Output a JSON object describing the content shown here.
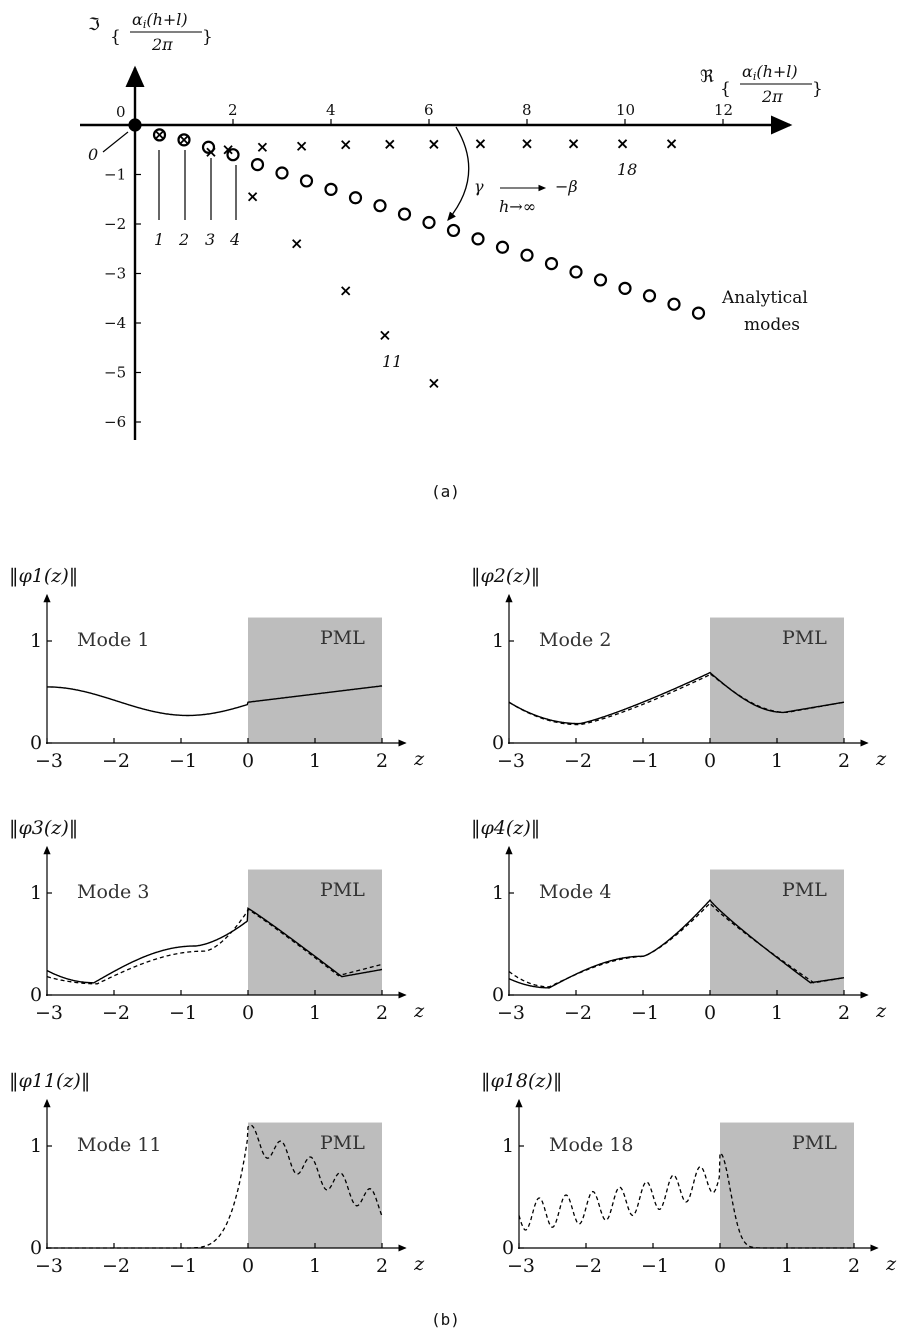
{
  "part_a": {
    "y_axis_label": "ℑ{αi(h+l) / 2π}",
    "x_axis_label": "ℜ{αi(h+l) / 2π}",
    "x_ticks": [
      "2",
      "4",
      "6",
      "8",
      "10",
      "12"
    ],
    "origin_x_label": "0",
    "y_ticks": [
      "−1",
      "−2",
      "−3",
      "−4",
      "−5",
      "−6"
    ],
    "zero_index_label": "0",
    "index_labels": [
      "1",
      "2",
      "3",
      "4",
      "11",
      "18"
    ],
    "gamma_annotation": "γ → −β",
    "gamma_subscript": "h→∞",
    "analytical_label_1": "Analytical",
    "analytical_label_2": "modes",
    "caption": "(a)",
    "analytical_modes": [
      [
        0,
        0
      ],
      [
        0.5,
        -0.2
      ],
      [
        1.0,
        -0.3
      ],
      [
        1.5,
        -0.45
      ],
      [
        2.0,
        -0.6
      ],
      [
        2.5,
        -0.8
      ],
      [
        3.0,
        -0.97
      ],
      [
        3.5,
        -1.13
      ],
      [
        4.0,
        -1.3
      ],
      [
        4.5,
        -1.47
      ],
      [
        5.0,
        -1.63
      ],
      [
        5.5,
        -1.8
      ],
      [
        6.0,
        -1.97
      ],
      [
        6.5,
        -2.13
      ],
      [
        7.0,
        -2.3
      ],
      [
        7.5,
        -2.47
      ],
      [
        8.0,
        -2.63
      ],
      [
        8.5,
        -2.8
      ],
      [
        9.0,
        -2.97
      ],
      [
        9.5,
        -3.13
      ],
      [
        10.0,
        -3.3
      ],
      [
        10.5,
        -3.45
      ],
      [
        11.0,
        -3.62
      ],
      [
        11.5,
        -3.8
      ]
    ],
    "numerical_modes": [
      [
        0,
        0
      ],
      [
        0.5,
        -0.2
      ],
      [
        1.0,
        -0.3
      ],
      [
        1.55,
        -0.55
      ],
      [
        1.9,
        -0.5
      ],
      [
        2.4,
        -1.45
      ],
      [
        2.6,
        -0.45
      ],
      [
        3.3,
        -2.4
      ],
      [
        3.4,
        -0.43
      ],
      [
        4.3,
        -3.35
      ],
      [
        4.3,
        -0.4
      ],
      [
        5.1,
        -4.25
      ],
      [
        5.2,
        -0.39
      ],
      [
        6.1,
        -0.39
      ],
      [
        6.1,
        -5.22
      ],
      [
        7.05,
        -0.38
      ],
      [
        8.0,
        -0.38
      ],
      [
        8.95,
        -0.38
      ],
      [
        9.95,
        -0.38
      ],
      [
        10.95,
        -0.38
      ]
    ]
  },
  "part_b": {
    "caption": "(b)",
    "x_axis_var": "z",
    "x_ticks": [
      "−3",
      "−2",
      "−1",
      "0",
      "1",
      "2"
    ],
    "y_ticks": [
      "0",
      "1"
    ],
    "pml_label": "PML",
    "panels": [
      {
        "ylabel": "‖φ1(z)‖",
        "mode": "Mode 1"
      },
      {
        "ylabel": "‖φ2(z)‖",
        "mode": "Mode 2"
      },
      {
        "ylabel": "‖φ3(z)‖",
        "mode": "Mode 3"
      },
      {
        "ylabel": "‖φ4(z)‖",
        "mode": "Mode 4"
      },
      {
        "ylabel": "‖φ11(z)‖",
        "mode": "Mode 11"
      },
      {
        "ylabel": "‖φ18(z)‖",
        "mode": "Mode 18"
      }
    ]
  }
}
